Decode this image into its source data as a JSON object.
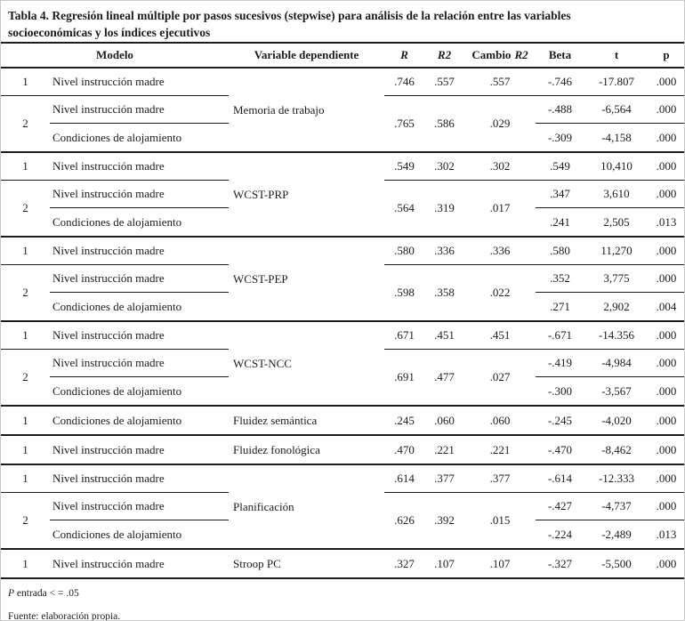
{
  "title": {
    "line1": "Tabla 4. Regresión lineal múltiple por pasos sucesivos (stepwise) para análisis de la relación entre las variables",
    "line2": "socioeconómicas y los índices ejecutivos"
  },
  "headers": {
    "modelo": "Modelo",
    "dependiente": "Variable dependiente",
    "r": "R",
    "r2": "R2",
    "cambio_prefix": "Cambio",
    "cambio_r2": "R2",
    "beta": "Beta",
    "t": "t",
    "p": "p"
  },
  "blocks": [
    {
      "dependent": "Memoria de trabajo",
      "m1": {
        "num": "1",
        "predictor": "Nivel instrucción madre",
        "r": ".746",
        "r2": ".557",
        "cambio": ".557",
        "beta": "-.746",
        "t": "-17.807",
        "p": ".000"
      },
      "m2": {
        "num": "2",
        "predictor1": "Nivel instrucción madre",
        "predictor2": "Condiciones de alojamiento",
        "r": ".765",
        "r2": ".586",
        "cambio": ".029",
        "beta1": "-.488",
        "t1": "-6,564",
        "p1": ".000",
        "beta2": "-.309",
        "t2": "-4,158",
        "p2": ".000"
      }
    },
    {
      "dependent": "WCST-PRP",
      "m1": {
        "num": "1",
        "predictor": "Nivel instrucción madre",
        "r": ".549",
        "r2": ".302",
        "cambio": ".302",
        "beta": ".549",
        "t": "10,410",
        "p": ".000"
      },
      "m2": {
        "num": "2",
        "predictor1": "Nivel instrucción madre",
        "predictor2": "Condiciones de alojamiento",
        "r": ".564",
        "r2": ".319",
        "cambio": ".017",
        "beta1": ".347",
        "t1": "3,610",
        "p1": ".000",
        "beta2": ".241",
        "t2": "2,505",
        "p2": ".013"
      }
    },
    {
      "dependent": "WCST-PEP",
      "m1": {
        "num": "1",
        "predictor": "Nivel instrucción madre",
        "r": ".580",
        "r2": ".336",
        "cambio": ".336",
        "beta": ".580",
        "t": "11,270",
        "p": ".000"
      },
      "m2": {
        "num": "2",
        "predictor1": "Nivel instrucción madre",
        "predictor2": "Condiciones de alojamiento",
        "r": ".598",
        "r2": ".358",
        "cambio": ".022",
        "beta1": ".352",
        "t1": "3,775",
        "p1": ".000",
        "beta2": ".271",
        "t2": "2,902",
        "p2": ".004"
      }
    },
    {
      "dependent": "WCST-NCC",
      "m1": {
        "num": "1",
        "predictor": "Nivel instrucción madre",
        "r": ".671",
        "r2": ".451",
        "cambio": ".451",
        "beta": "-.671",
        "t": "-14.356",
        "p": ".000"
      },
      "m2": {
        "num": "2",
        "predictor1": "Nivel instrucción madre",
        "predictor2": "Condiciones de alojamiento",
        "r": ".691",
        "r2": ".477",
        "cambio": ".027",
        "beta1": "-.419",
        "t1": "-4,984",
        "p1": ".000",
        "beta2": "-.300",
        "t2": "-3,567",
        "p2": ".000"
      }
    },
    {
      "dependent": "Fluidez semántica",
      "m1": {
        "num": "1",
        "predictor": "Condiciones de alojamiento",
        "r": ".245",
        "r2": ".060",
        "cambio": ".060",
        "beta": "-.245",
        "t": "-4,020",
        "p": ".000"
      }
    },
    {
      "dependent": "Fluidez fonológica",
      "m1": {
        "num": "1",
        "predictor": "Nivel instrucción madre",
        "r": ".470",
        "r2": ".221",
        "cambio": ".221",
        "beta": "-.470",
        "t": "-8,462",
        "p": ".000"
      }
    },
    {
      "dependent": "Planificación",
      "m1": {
        "num": "1",
        "predictor": "Nivel instrucción madre",
        "r": ".614",
        "r2": ".377",
        "cambio": ".377",
        "beta": "-.614",
        "t": "-12.333",
        "p": ".000"
      },
      "m2": {
        "num": "2",
        "predictor1": "Nivel instrucción madre",
        "predictor2": "Condiciones de alojamiento",
        "r": ".626",
        "r2": ".392",
        "cambio": ".015",
        "beta1": "-.427",
        "t1": "-4,737",
        "p1": ".000",
        "beta2": "-.224",
        "t2": "-2,489",
        "p2": ".013"
      }
    },
    {
      "dependent": "Stroop PC",
      "m1": {
        "num": "1",
        "predictor": "Nivel instrucción madre",
        "r": ".327",
        "r2": ".107",
        "cambio": ".107",
        "beta": "-.327",
        "t": "-5,500",
        "p": ".000"
      }
    }
  ],
  "footnotes": {
    "p_symbol": "P",
    "p_rest": " entrada < = .05",
    "source": "Fuente: elaboración propia."
  },
  "colors": {
    "text": "#1c1c1c",
    "rule": "#1c1c1c",
    "background": "#ffffff"
  }
}
